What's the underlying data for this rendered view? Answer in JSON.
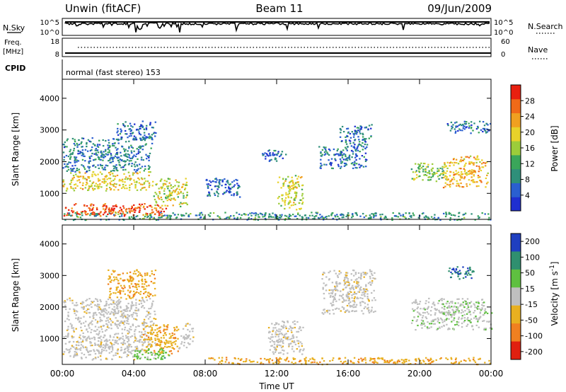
{
  "header": {
    "station": "Unwin (fitACF)",
    "beam": "Beam 11",
    "date": "09/Jun/2009"
  },
  "top_panels": {
    "nsky_label": "N.Sky",
    "nsky_ticks": [
      "10^5",
      "10^0"
    ],
    "nsearch_label": "N.Search",
    "freq_label_line1": "Freq.",
    "freq_label_line2": "[MHz]",
    "freq_ticks": [
      "18",
      "8"
    ],
    "nave_label": "Nave",
    "nave_ticks": [
      "60",
      "0"
    ],
    "cpid_label": "CPID",
    "cpid_text": "normal (fast stereo) 153"
  },
  "chart_data": [
    {
      "type": "heatmap",
      "name": "power",
      "ylabel": "Slant Range [km]",
      "xlabel": "Time UT",
      "x_ticks": [
        "00:00",
        "04:00",
        "08:00",
        "12:00",
        "16:00",
        "20:00",
        "00:00"
      ],
      "y_ticks": [
        1000,
        2000,
        3000,
        4000
      ],
      "ylim": [
        180,
        4600
      ],
      "xlim_hours": [
        0,
        24
      ],
      "colorbar": {
        "label": "Power [dB]",
        "ticks": [
          4,
          8,
          12,
          16,
          20,
          24,
          28
        ],
        "range": [
          0,
          32
        ]
      },
      "regions": [
        {
          "t0": 0.0,
          "t1": 5.9,
          "r0": 300,
          "r1": 700,
          "level": 28
        },
        {
          "t0": 0.0,
          "t1": 5.0,
          "r0": 1100,
          "r1": 1700,
          "level": 20
        },
        {
          "t0": 0.0,
          "t1": 5.0,
          "r0": 1700,
          "r1": 2800,
          "level": 8
        },
        {
          "t0": 3.0,
          "t1": 5.2,
          "r0": 2700,
          "r1": 3300,
          "level": 6
        },
        {
          "t0": 5.0,
          "t1": 7.0,
          "r0": 600,
          "r1": 1500,
          "level": 18
        },
        {
          "t0": 8.0,
          "t1": 10.0,
          "r0": 900,
          "r1": 1500,
          "level": 6
        },
        {
          "t0": 11.0,
          "t1": 12.5,
          "r0": 2000,
          "r1": 2400,
          "level": 6
        },
        {
          "t0": 12.0,
          "t1": 13.5,
          "r0": 500,
          "r1": 1600,
          "level": 18
        },
        {
          "t0": 14.3,
          "t1": 17.0,
          "r0": 1800,
          "r1": 2500,
          "level": 7
        },
        {
          "t0": 15.5,
          "t1": 17.3,
          "r0": 2400,
          "r1": 3200,
          "level": 7
        },
        {
          "t0": 19.5,
          "t1": 21.5,
          "r0": 1400,
          "r1": 2000,
          "level": 14
        },
        {
          "t0": 21.3,
          "t1": 23.8,
          "r0": 1200,
          "r1": 2200,
          "level": 22
        },
        {
          "t0": 21.5,
          "t1": 24.0,
          "r0": 2900,
          "r1": 3300,
          "level": 7
        },
        {
          "t0": 0.0,
          "t1": 24.0,
          "r0": 180,
          "r1": 420,
          "level": 10
        }
      ]
    },
    {
      "type": "heatmap",
      "name": "velocity",
      "ylabel": "Slant Range [km]",
      "xlabel": "Time UT",
      "x_ticks": [
        "00:00",
        "04:00",
        "08:00",
        "12:00",
        "16:00",
        "20:00",
        "00:00"
      ],
      "y_ticks": [
        1000,
        2000,
        3000,
        4000
      ],
      "ylim": [
        180,
        4600
      ],
      "xlim_hours": [
        0,
        24
      ],
      "colorbar": {
        "label": "Velocity [m s^-1]",
        "ticks": [
          200,
          100,
          50,
          15,
          -15,
          -50,
          -100,
          -200
        ]
      },
      "regions": [
        {
          "t0": 0.0,
          "t1": 5.2,
          "r0": 350,
          "r1": 1200,
          "level": 0
        },
        {
          "t0": 0.0,
          "t1": 5.2,
          "r0": 1200,
          "r1": 2300,
          "level": 0
        },
        {
          "t0": 2.5,
          "t1": 5.2,
          "r0": 2300,
          "r1": 3200,
          "level": -40
        },
        {
          "t0": 4.5,
          "t1": 6.5,
          "r0": 500,
          "r1": 1500,
          "level": -40
        },
        {
          "t0": 4.0,
          "t1": 6.0,
          "r0": 350,
          "r1": 700,
          "level": 60
        },
        {
          "t0": 6.5,
          "t1": 7.3,
          "r0": 700,
          "r1": 1500,
          "level": 0
        },
        {
          "t0": 11.5,
          "t1": 13.5,
          "r0": 500,
          "r1": 1600,
          "level": 0
        },
        {
          "t0": 14.5,
          "t1": 17.5,
          "r0": 1800,
          "r1": 3200,
          "level": 0
        },
        {
          "t0": 19.5,
          "t1": 24.0,
          "r0": 1300,
          "r1": 2300,
          "level": 20
        },
        {
          "t0": 21.5,
          "t1": 23.0,
          "r0": 2900,
          "r1": 3300,
          "level": 150
        },
        {
          "t0": 8.0,
          "t1": 24.0,
          "r0": 200,
          "r1": 420,
          "level": -40
        }
      ]
    }
  ]
}
